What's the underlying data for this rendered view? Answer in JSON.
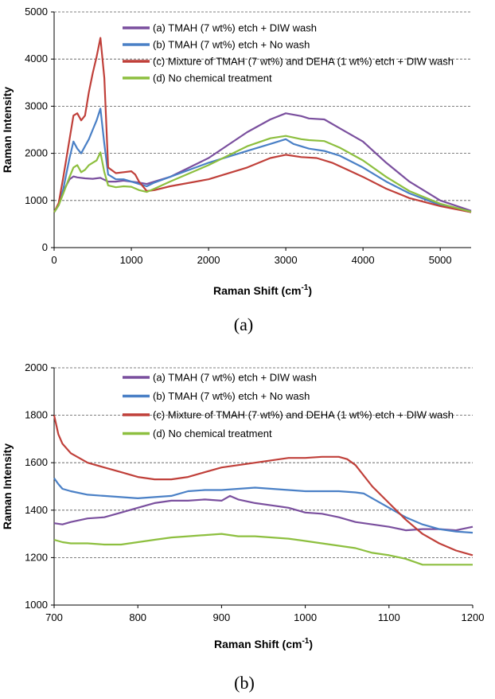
{
  "chart_data": [
    {
      "type": "line",
      "caption": "(a)",
      "xlabel": "Raman Shift (cm",
      "xlabel_sup": "-1",
      "xlabel_end": ")",
      "ylabel": "Raman Intensity",
      "xlim": [
        0,
        5400
      ],
      "ylim": [
        0,
        5000
      ],
      "xticks": [
        0,
        1000,
        2000,
        3000,
        4000,
        5000
      ],
      "yticks": [
        0,
        1000,
        2000,
        3000,
        4000,
        5000
      ],
      "grid": "horizontal-dashed",
      "legend_position": "top-right",
      "series": [
        {
          "name": "(a) TMAH (7 wt%) etch + DIW wash",
          "color": "#7a4f9e",
          "x": [
            0,
            60,
            120,
            200,
            250,
            300,
            400,
            500,
            600,
            700,
            800,
            900,
            1000,
            1100,
            1200,
            1300,
            1500,
            2000,
            2500,
            2800,
            3000,
            3200,
            3300,
            3500,
            3700,
            4000,
            4300,
            4600,
            5000,
            5400
          ],
          "y": [
            750,
            900,
            1200,
            1450,
            1510,
            1490,
            1470,
            1460,
            1480,
            1400,
            1400,
            1420,
            1400,
            1380,
            1350,
            1400,
            1500,
            1900,
            2450,
            2720,
            2850,
            2790,
            2740,
            2720,
            2530,
            2250,
            1800,
            1400,
            1000,
            780
          ]
        },
        {
          "name": "(b) TMAH (7 wt%) etch + No wash",
          "color": "#4a80c6",
          "x": [
            0,
            60,
            120,
            200,
            250,
            300,
            350,
            400,
            450,
            500,
            550,
            600,
            650,
            700,
            800,
            900,
            1000,
            1100,
            1200,
            1300,
            1500,
            2000,
            2500,
            2800,
            3000,
            3100,
            3300,
            3500,
            3700,
            4000,
            4300,
            4600,
            5000,
            5400
          ],
          "y": [
            750,
            900,
            1250,
            1900,
            2250,
            2100,
            2000,
            2150,
            2300,
            2500,
            2700,
            2950,
            2200,
            1550,
            1450,
            1450,
            1400,
            1350,
            1300,
            1380,
            1500,
            1800,
            2050,
            2200,
            2300,
            2200,
            2100,
            2050,
            1950,
            1700,
            1400,
            1150,
            900,
            750
          ]
        },
        {
          "name": "(c) Mixture of TMAH (7 wt%) and DEHA (1 wt%) etch + DIW wash",
          "color": "#c0403a",
          "x": [
            0,
            60,
            120,
            200,
            250,
            300,
            350,
            400,
            450,
            500,
            550,
            600,
            650,
            700,
            800,
            900,
            1000,
            1050,
            1100,
            1200,
            1300,
            1500,
            2000,
            2500,
            2800,
            3000,
            3200,
            3400,
            3600,
            3800,
            4000,
            4300,
            4600,
            5000,
            5400
          ],
          "y": [
            750,
            950,
            1500,
            2300,
            2800,
            2850,
            2700,
            2800,
            3300,
            3700,
            4050,
            4450,
            3600,
            1700,
            1580,
            1600,
            1620,
            1550,
            1400,
            1200,
            1220,
            1300,
            1450,
            1700,
            1900,
            1970,
            1920,
            1900,
            1800,
            1650,
            1500,
            1250,
            1050,
            880,
            750
          ]
        },
        {
          "name": "(d) No chemical treatment",
          "color": "#8dbf3f",
          "x": [
            0,
            60,
            120,
            200,
            250,
            300,
            350,
            400,
            450,
            500,
            550,
            600,
            650,
            700,
            800,
            900,
            1000,
            1100,
            1200,
            1300,
            1500,
            2000,
            2500,
            2800,
            3000,
            3200,
            3300,
            3500,
            3700,
            4000,
            4300,
            4600,
            5000,
            5400
          ],
          "y": [
            750,
            900,
            1150,
            1500,
            1700,
            1750,
            1600,
            1650,
            1750,
            1800,
            1850,
            2020,
            1600,
            1320,
            1280,
            1300,
            1290,
            1220,
            1180,
            1250,
            1400,
            1750,
            2150,
            2320,
            2370,
            2300,
            2280,
            2260,
            2120,
            1850,
            1500,
            1200,
            930,
            760
          ]
        }
      ]
    },
    {
      "type": "line",
      "caption": "(b)",
      "xlabel": "Raman Shift (cm",
      "xlabel_sup": "-1",
      "xlabel_end": ")",
      "ylabel": "Raman Intensity",
      "xlim": [
        700,
        1200
      ],
      "ylim": [
        1000,
        2000
      ],
      "xticks": [
        700,
        800,
        900,
        1000,
        1100,
        1200
      ],
      "yticks": [
        1000,
        1200,
        1400,
        1600,
        1800,
        2000
      ],
      "grid": "horizontal-dashed",
      "legend_position": "top-right",
      "series": [
        {
          "name": "(a) TMAH (7 wt%) etch + DIW wash",
          "color": "#7a4f9e",
          "x": [
            700,
            710,
            720,
            740,
            760,
            780,
            800,
            820,
            840,
            860,
            880,
            900,
            910,
            920,
            940,
            960,
            980,
            1000,
            1020,
            1040,
            1060,
            1080,
            1100,
            1120,
            1140,
            1160,
            1180,
            1200
          ],
          "y": [
            1345,
            1340,
            1350,
            1365,
            1370,
            1390,
            1410,
            1430,
            1440,
            1440,
            1445,
            1440,
            1460,
            1445,
            1430,
            1420,
            1410,
            1390,
            1385,
            1370,
            1350,
            1340,
            1330,
            1315,
            1320,
            1320,
            1315,
            1330
          ]
        },
        {
          "name": "(b) TMAH (7 wt%) etch + No wash",
          "color": "#4a80c6",
          "x": [
            700,
            705,
            710,
            720,
            740,
            760,
            780,
            800,
            820,
            840,
            860,
            880,
            900,
            920,
            940,
            960,
            980,
            1000,
            1020,
            1040,
            1060,
            1070,
            1080,
            1100,
            1120,
            1140,
            1160,
            1180,
            1200
          ],
          "y": [
            1535,
            1510,
            1490,
            1480,
            1465,
            1460,
            1455,
            1450,
            1455,
            1460,
            1480,
            1485,
            1485,
            1490,
            1495,
            1490,
            1485,
            1480,
            1480,
            1480,
            1475,
            1470,
            1450,
            1410,
            1370,
            1340,
            1320,
            1310,
            1305
          ]
        },
        {
          "name": "(c) Mixture of TMAH (7 wt%) and DEHA (1 wt%) etch + DIW wash",
          "color": "#c0403a",
          "x": [
            700,
            705,
            710,
            720,
            740,
            760,
            780,
            800,
            820,
            840,
            860,
            880,
            900,
            920,
            940,
            960,
            980,
            1000,
            1020,
            1040,
            1050,
            1060,
            1080,
            1100,
            1120,
            1140,
            1160,
            1180,
            1200
          ],
          "y": [
            1800,
            1720,
            1680,
            1640,
            1600,
            1580,
            1560,
            1540,
            1530,
            1530,
            1540,
            1560,
            1580,
            1590,
            1600,
            1610,
            1620,
            1620,
            1625,
            1625,
            1615,
            1590,
            1500,
            1430,
            1360,
            1300,
            1260,
            1230,
            1210
          ]
        },
        {
          "name": "(d) No chemical treatment",
          "color": "#8dbf3f",
          "x": [
            700,
            710,
            720,
            740,
            760,
            780,
            800,
            820,
            840,
            860,
            880,
            900,
            910,
            920,
            940,
            960,
            980,
            1000,
            1020,
            1040,
            1060,
            1080,
            1100,
            1120,
            1140,
            1160,
            1180,
            1200
          ],
          "y": [
            1275,
            1265,
            1260,
            1260,
            1255,
            1255,
            1265,
            1275,
            1285,
            1290,
            1295,
            1300,
            1295,
            1290,
            1290,
            1285,
            1280,
            1270,
            1260,
            1250,
            1240,
            1220,
            1210,
            1195,
            1170,
            1170,
            1170,
            1170
          ]
        }
      ]
    }
  ]
}
